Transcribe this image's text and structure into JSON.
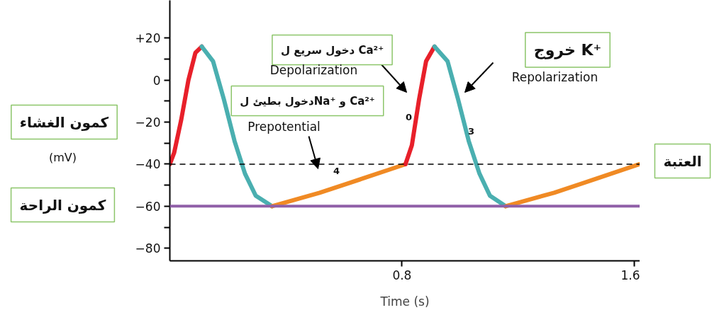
{
  "chart_data": {
    "type": "line",
    "xlabel": "Time (s)",
    "xlim": [
      0,
      1.62
    ],
    "ylim": [
      -86,
      38
    ],
    "xticks": [
      0.8,
      1.6
    ],
    "yticks": [
      {
        "value": -80,
        "label": "−80"
      },
      {
        "value": -70,
        "label": null
      },
      {
        "value": -60,
        "label": "−60"
      },
      {
        "value": -50,
        "label": null
      },
      {
        "value": -40,
        "label": "−40"
      },
      {
        "value": -30,
        "label": null
      },
      {
        "value": -20,
        "label": "−20"
      },
      {
        "value": -10,
        "label": null
      },
      {
        "value": 0,
        "label": "0"
      },
      {
        "value": 10,
        "label": null
      },
      {
        "value": 20,
        "label": "+20"
      }
    ],
    "grid": false,
    "marker": "none",
    "line_style": "solid",
    "series": [
      {
        "color": "#e8202a",
        "x": [
          0,
          0.015,
          0.039,
          0.064,
          0.088,
          0.11
        ],
        "values": [
          -40,
          -34.5,
          -19,
          0,
          13,
          16
        ]
      },
      {
        "color": "#4aafb0",
        "x": [
          0.11,
          0.149,
          0.186,
          0.223,
          0.259,
          0.296,
          0.352
        ],
        "values": [
          16,
          9,
          -9,
          -29,
          -44.5,
          -55,
          -60
        ]
      },
      {
        "color": "#f08a24",
        "x": [
          0.352,
          0.516,
          0.663,
          0.812
        ],
        "values": [
          -60,
          -53.6,
          -46.9,
          -40
        ]
      },
      {
        "color": "#e8202a",
        "x": [
          0.812,
          0.834,
          0.859,
          0.883,
          0.912
        ],
        "values": [
          -40,
          -31,
          -9,
          9,
          16
        ]
      },
      {
        "color": "#4aafb0",
        "x": [
          0.912,
          0.957,
          0.993,
          1.03,
          1.067,
          1.103,
          1.157
        ],
        "values": [
          16,
          9,
          -9,
          -29,
          -44.5,
          -55,
          -60
        ]
      },
      {
        "color": "#f08a24",
        "x": [
          1.157,
          1.324,
          1.47,
          1.617
        ],
        "values": [
          -60,
          -53.6,
          -46.9,
          -40
        ]
      }
    ],
    "ref_lines": [
      {
        "axis": "y",
        "value": -40,
        "label": "العتبة",
        "color": "#000000",
        "line_style": "dashed"
      },
      {
        "axis": "y",
        "value": -60,
        "color": "#9060a8",
        "line_style": "solid"
      }
    ],
    "annotations": [
      "كمون الغشاء",
      "(mV)",
      "كمون الراحة",
      "دخول سريع ل Ca²⁺",
      "Depolarization",
      "خروج K⁺",
      "Repolarization",
      "دخول بطيئ لNa⁺ و Ca²⁺",
      "Prepotential",
      "0",
      "3",
      "4"
    ]
  }
}
